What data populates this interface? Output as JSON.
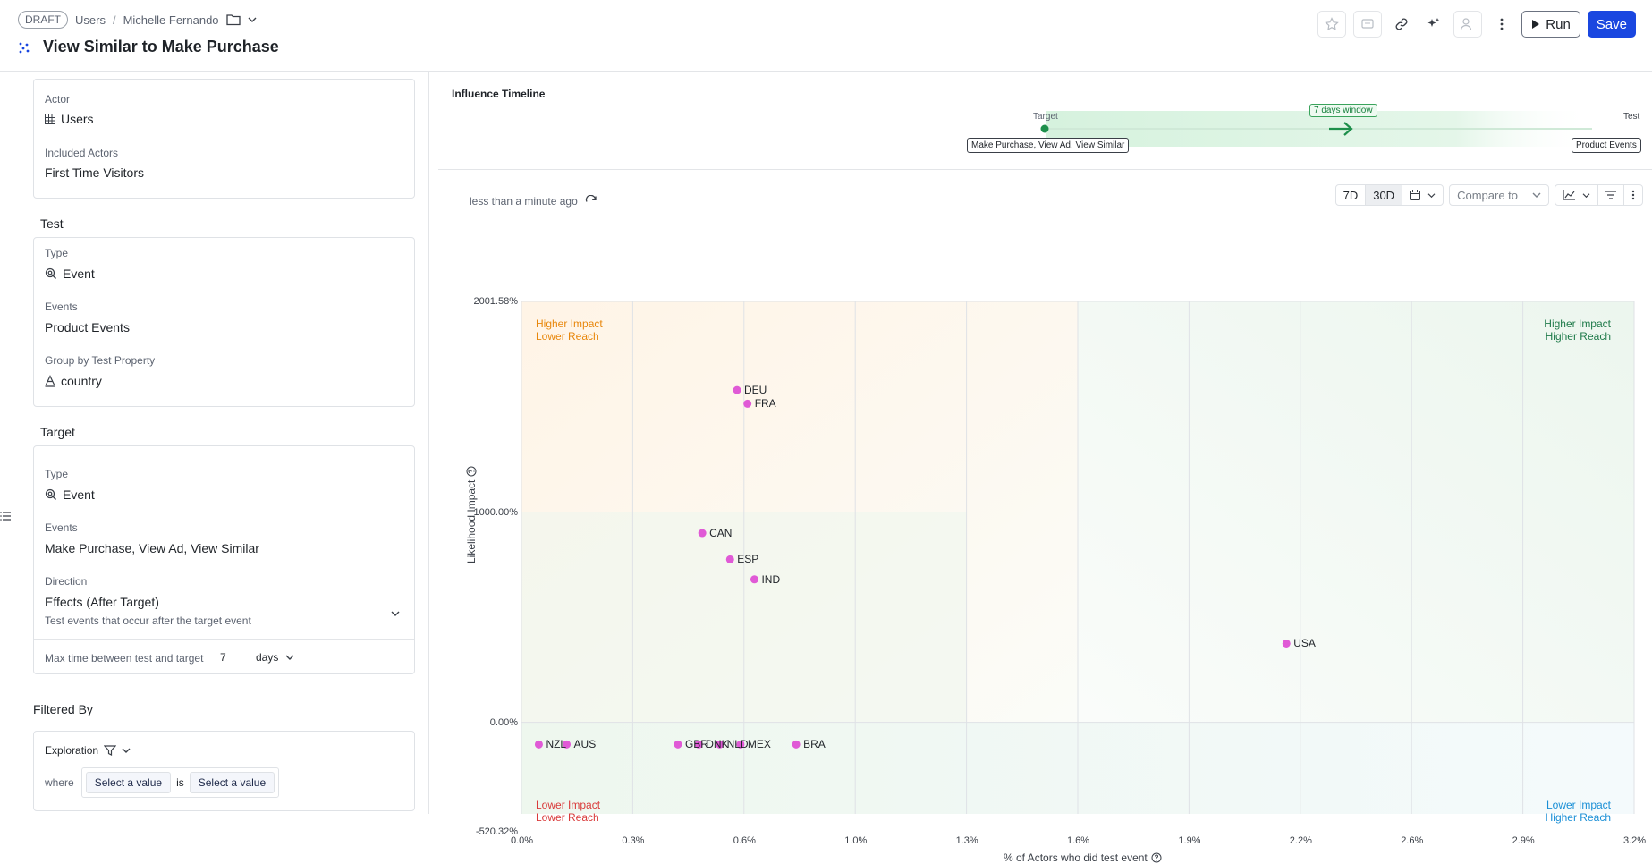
{
  "header": {
    "draft": "DRAFT",
    "crumbs": [
      "Users",
      "Michelle Fernando"
    ],
    "title": "View Similar to Make Purchase",
    "run_label": "Run",
    "save_label": "Save"
  },
  "sidebar": {
    "actor": {
      "actor_label": "Actor",
      "actor_value": "Users",
      "included_label": "Included Actors",
      "included_value": "First Time Visitors"
    },
    "test": {
      "title": "Test",
      "type_label": "Type",
      "type_value": "Event",
      "events_label": "Events",
      "events_value": "Product Events",
      "group_label": "Group by Test Property",
      "group_value": "country"
    },
    "target": {
      "title": "Target",
      "type_label": "Type",
      "type_value": "Event",
      "events_label": "Events",
      "events_value": "Make Purchase, View Ad, View Similar",
      "direction_label": "Direction",
      "direction_value": "Effects (After Target)",
      "direction_hint": "Test events that occur after the target event",
      "max_time_label": "Max time between test and target",
      "max_time_value": "7",
      "max_time_unit": "days"
    },
    "filter": {
      "title": "Filtered By",
      "exploration_label": "Exploration",
      "where_label": "where",
      "select1": "Select a value",
      "is_label": "is",
      "select2": "Select a value"
    }
  },
  "timeline": {
    "title": "Influence Timeline",
    "target_label": "Target",
    "target_events": "Make Purchase, View Ad, View Similar",
    "window_label": "7 days window",
    "test_label": "Test",
    "test_events": "Product Events"
  },
  "controls": {
    "updated": "less than a minute ago",
    "range_7d": "7D",
    "range_30d": "30D",
    "compare_label": "Compare to"
  },
  "colors": {
    "accent": "#1a47e0",
    "point": "#e05ad6",
    "quad_top_left": "#e8870c",
    "quad_top_right": "#1f7a4a",
    "quad_bottom_left": "#d93a3a",
    "quad_bottom_right": "#1a8fd6"
  },
  "chart_data": {
    "type": "scatter",
    "xlabel": "% of Actors who did test event",
    "ylabel": "Likelihood Impact",
    "x_ticks": [
      "0.0%",
      "0.3%",
      "0.6%",
      "1.0%",
      "1.3%",
      "1.6%",
      "1.9%",
      "2.2%",
      "2.6%",
      "2.9%",
      "3.2%"
    ],
    "y_ticks": [
      "2001.58%",
      "1000.00%",
      "0.00%",
      "-520.32%"
    ],
    "xlim": [
      0,
      3.2
    ],
    "ylim": [
      -520.32,
      2001.58
    ],
    "quadrants": {
      "top_left": [
        "Higher Impact",
        "Lower Reach"
      ],
      "top_right": [
        "Higher Impact",
        "Higher Reach"
      ],
      "bottom_left": [
        "Lower Impact",
        "Lower Reach"
      ],
      "bottom_right": [
        "Lower Impact",
        "Higher Reach"
      ]
    },
    "points": [
      {
        "label": "DEU",
        "x": 0.62,
        "y": 1580
      },
      {
        "label": "FRA",
        "x": 0.65,
        "y": 1515
      },
      {
        "label": "CAN",
        "x": 0.52,
        "y": 900
      },
      {
        "label": "ESP",
        "x": 0.6,
        "y": 775
      },
      {
        "label": "IND",
        "x": 0.67,
        "y": 680
      },
      {
        "label": "USA",
        "x": 2.2,
        "y": 375
      },
      {
        "label": "NZL",
        "x": 0.05,
        "y": -105
      },
      {
        "label": "AUS",
        "x": 0.13,
        "y": -105
      },
      {
        "label": "GBR",
        "x": 0.45,
        "y": -105
      },
      {
        "label": "DNK",
        "x": 0.51,
        "y": -105
      },
      {
        "label": "NLD",
        "x": 0.57,
        "y": -105
      },
      {
        "label": "MEX",
        "x": 0.63,
        "y": -105
      },
      {
        "label": "BRA",
        "x": 0.79,
        "y": -105
      }
    ]
  }
}
